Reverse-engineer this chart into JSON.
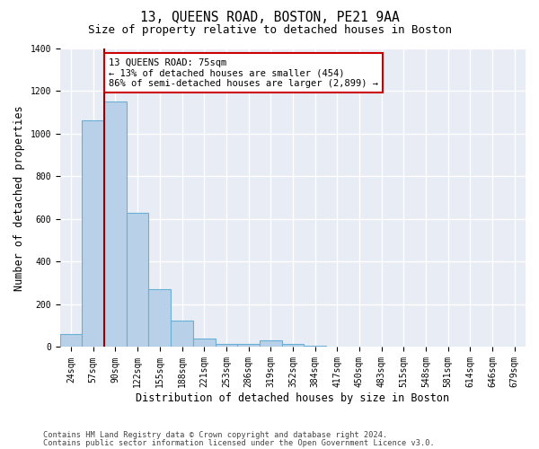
{
  "title_line1": "13, QUEENS ROAD, BOSTON, PE21 9AA",
  "title_line2": "Size of property relative to detached houses in Boston",
  "xlabel": "Distribution of detached houses by size in Boston",
  "ylabel": "Number of detached properties",
  "categories": [
    "24sqm",
    "57sqm",
    "90sqm",
    "122sqm",
    "155sqm",
    "188sqm",
    "221sqm",
    "253sqm",
    "286sqm",
    "319sqm",
    "352sqm",
    "384sqm",
    "417sqm",
    "450sqm",
    "483sqm",
    "515sqm",
    "548sqm",
    "581sqm",
    "614sqm",
    "646sqm",
    "679sqm"
  ],
  "values": [
    60,
    1065,
    1150,
    630,
    270,
    125,
    40,
    15,
    15,
    30,
    15,
    5,
    0,
    0,
    0,
    0,
    0,
    0,
    0,
    0,
    0
  ],
  "bar_color": "#b8d0e8",
  "bar_edge_color": "#6baed6",
  "vline_color": "#990000",
  "annotation_text": "13 QUEENS ROAD: 75sqm\n← 13% of detached houses are smaller (454)\n86% of semi-detached houses are larger (2,899) →",
  "annotation_box_color": "#ffffff",
  "annotation_box_edge_color": "#cc0000",
  "ylim": [
    0,
    1400
  ],
  "yticks": [
    0,
    200,
    400,
    600,
    800,
    1000,
    1200,
    1400
  ],
  "background_color": "#e8edf5",
  "grid_color": "#ffffff",
  "footer_line1": "Contains HM Land Registry data © Crown copyright and database right 2024.",
  "footer_line2": "Contains public sector information licensed under the Open Government Licence v3.0.",
  "title_fontsize": 10.5,
  "subtitle_fontsize": 9,
  "axis_label_fontsize": 8.5,
  "tick_fontsize": 7,
  "annotation_fontsize": 7.5,
  "vline_xindex": 1.5
}
